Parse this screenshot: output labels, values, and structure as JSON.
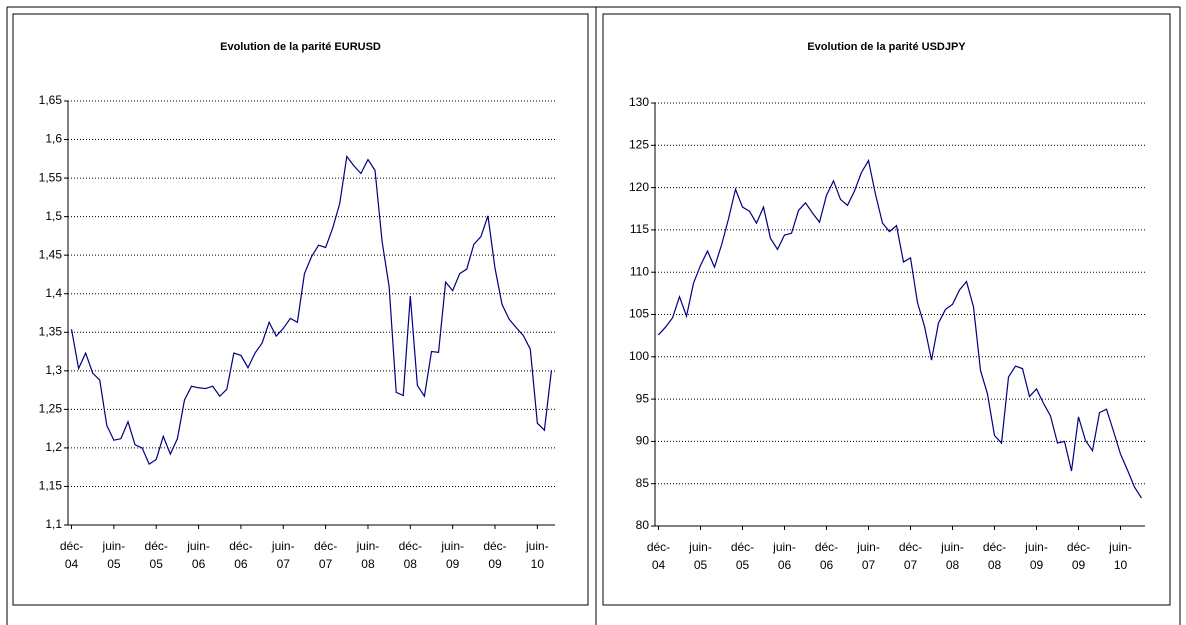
{
  "chart_data": [
    {
      "type": "line",
      "title": "Evolution de la parité EURUSD",
      "color": "#000080",
      "grid": true,
      "categories": [
        "déc-04",
        null,
        null,
        null,
        null,
        null,
        "juin-05",
        null,
        null,
        null,
        null,
        null,
        "déc-05",
        null,
        null,
        null,
        null,
        null,
        "juin-06",
        null,
        null,
        null,
        null,
        null,
        "déc-06",
        null,
        null,
        null,
        null,
        null,
        "juin-07",
        null,
        null,
        null,
        null,
        null,
        "déc-07",
        null,
        null,
        null,
        null,
        null,
        "juin-08",
        null,
        null,
        null,
        null,
        null,
        "déc-08",
        null,
        null,
        null,
        null,
        null,
        "juin-09",
        null,
        null,
        null,
        null,
        null,
        "déc-09",
        null,
        null,
        null,
        null,
        null,
        "juin-10",
        null,
        null
      ],
      "values": [
        1.354,
        1.303,
        1.323,
        1.297,
        1.288,
        1.229,
        1.21,
        1.212,
        1.234,
        1.204,
        1.2,
        1.179,
        1.185,
        1.215,
        1.192,
        1.212,
        1.262,
        1.28,
        1.278,
        1.277,
        1.28,
        1.267,
        1.276,
        1.323,
        1.32,
        1.304,
        1.323,
        1.336,
        1.363,
        1.345,
        1.355,
        1.368,
        1.363,
        1.426,
        1.448,
        1.463,
        1.46,
        1.485,
        1.517,
        1.578,
        1.566,
        1.556,
        1.574,
        1.56,
        1.468,
        1.409,
        1.272,
        1.268,
        1.397,
        1.281,
        1.267,
        1.325,
        1.324,
        1.415,
        1.404,
        1.426,
        1.432,
        1.464,
        1.474,
        1.501,
        1.433,
        1.386,
        1.367,
        1.356,
        1.346,
        1.328,
        1.232,
        1.223,
        1.301
      ],
      "ylim": [
        1.1,
        1.65
      ],
      "yticks": [
        {
          "value": 1.1,
          "label": "1,1"
        },
        {
          "value": 1.15,
          "label": "1,15"
        },
        {
          "value": 1.2,
          "label": "1,2"
        },
        {
          "value": 1.25,
          "label": "1,25"
        },
        {
          "value": 1.3,
          "label": "1,3"
        },
        {
          "value": 1.35,
          "label": "1,35"
        },
        {
          "value": 1.4,
          "label": "1,4"
        },
        {
          "value": 1.45,
          "label": "1,45"
        },
        {
          "value": 1.5,
          "label": "1,5"
        },
        {
          "value": 1.55,
          "label": "1,55"
        },
        {
          "value": 1.6,
          "label": "1,6"
        },
        {
          "value": 1.65,
          "label": "1,65"
        }
      ]
    },
    {
      "type": "line",
      "title": "Evolution de la parité USDJPY",
      "color": "#000080",
      "grid": true,
      "categories": [
        "déc-04",
        null,
        null,
        null,
        null,
        null,
        "juin-05",
        null,
        null,
        null,
        null,
        null,
        "déc-05",
        null,
        null,
        null,
        null,
        null,
        "juin-06",
        null,
        null,
        null,
        null,
        null,
        "déc-06",
        null,
        null,
        null,
        null,
        null,
        "juin-07",
        null,
        null,
        null,
        null,
        null,
        "déc-07",
        null,
        null,
        null,
        null,
        null,
        "juin-08",
        null,
        null,
        null,
        null,
        null,
        "déc-08",
        null,
        null,
        null,
        null,
        null,
        "juin-09",
        null,
        null,
        null,
        null,
        null,
        "déc-09",
        null,
        null,
        null,
        null,
        null,
        "juin-10",
        null,
        null,
        null
      ],
      "values": [
        102.6,
        103.5,
        104.6,
        107.1,
        104.8,
        108.7,
        110.8,
        112.5,
        110.6,
        113.2,
        116.3,
        119.8,
        117.7,
        117.2,
        115.8,
        117.7,
        114.0,
        112.7,
        114.4,
        114.6,
        117.3,
        118.2,
        117.0,
        115.9,
        119.1,
        120.8,
        118.6,
        117.9,
        119.6,
        121.8,
        123.2,
        119.2,
        115.8,
        114.8,
        115.5,
        111.2,
        111.7,
        106.4,
        103.6,
        99.6,
        104.0,
        105.6,
        106.2,
        107.9,
        108.9,
        105.9,
        98.4,
        95.6,
        90.7,
        89.8,
        97.6,
        98.9,
        98.6,
        95.3,
        96.2,
        94.5,
        93.0,
        89.8,
        90.0,
        86.5,
        92.9,
        90.1,
        88.9,
        93.4,
        93.8,
        91.2,
        88.5,
        86.6,
        84.6,
        83.3
      ],
      "ylim": [
        80,
        130
      ],
      "yticks": [
        80,
        85,
        90,
        95,
        100,
        105,
        110,
        115,
        120,
        125,
        130
      ]
    }
  ]
}
